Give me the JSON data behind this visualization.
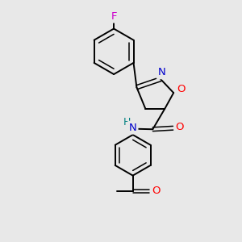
{
  "bg_color": "#e8e8e8",
  "bond_color": "#000000",
  "atom_colors": {
    "F": "#cc00cc",
    "O": "#ff0000",
    "N": "#0000cc",
    "C": "#000000",
    "H": "#008080"
  },
  "figsize": [
    3.0,
    3.0
  ],
  "dpi": 100,
  "lw": 1.4,
  "lw_inner": 1.1,
  "fontsize": 9.5
}
